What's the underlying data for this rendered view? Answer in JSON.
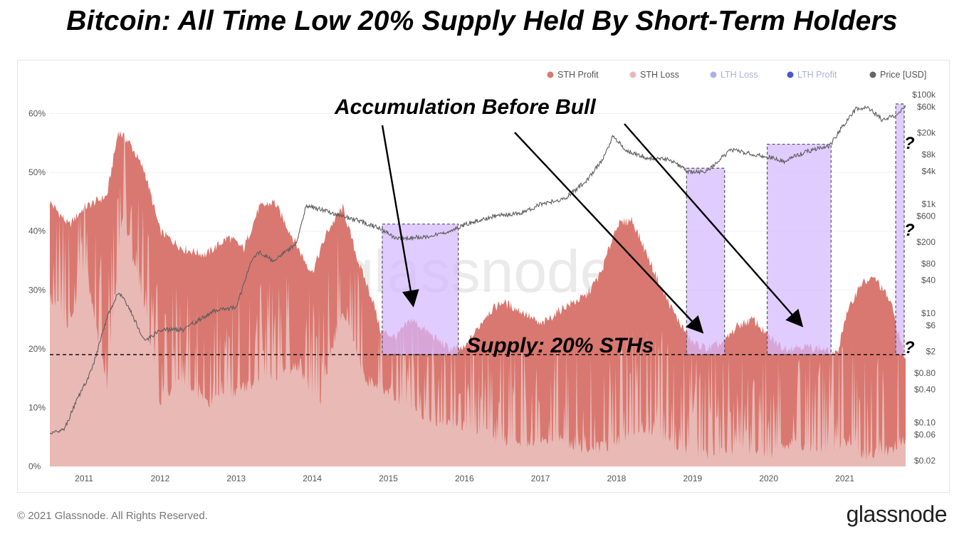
{
  "title": "Bitcoin: All Time Low 20% Supply Held By Short-Term Holders",
  "footer": {
    "copyright": "© 2021 Glassnode. All Rights Reserved.",
    "logo": "glassnode"
  },
  "watermark": "glassnode",
  "colors": {
    "sth_profit": "#d97870",
    "sth_loss": "#e9b9b5",
    "lth_loss": "#a9b2ea",
    "lth_profit": "#4b55d6",
    "price": "#5e5e5e",
    "highlight": "#d6b9ff"
  },
  "annotations": {
    "accumulation": "Accumulation Before Bull",
    "supply_line": "Supply: 20% STHs",
    "question": "?"
  },
  "chart_data": {
    "type": "area",
    "title": "Bitcoin: All Time Low 20% Supply Held By Short-Term Holders",
    "legend": [
      {
        "name": "STH Profit",
        "color": "#d97870",
        "faded": false
      },
      {
        "name": "STH Loss",
        "color": "#e9b9b5",
        "faded": false
      },
      {
        "name": "LTH Loss",
        "color": "#a9b2ea",
        "faded": true
      },
      {
        "name": "LTH Profit",
        "color": "#4b55d6",
        "faded": true
      },
      {
        "name": "Price [USD]",
        "color": "#666666",
        "faded": false
      }
    ],
    "legend_position": "top-right",
    "x_ticks": [
      "2011",
      "2012",
      "2013",
      "2014",
      "2015",
      "2016",
      "2017",
      "2018",
      "2019",
      "2020",
      "2021"
    ],
    "x_range": [
      2010.55,
      2021.8
    ],
    "y_left_ticks": [
      "0%",
      "10%",
      "20%",
      "30%",
      "40%",
      "50%",
      "60%"
    ],
    "y_left_range": [
      0,
      66
    ],
    "y_right_ticks": [
      "$0.02",
      "$0.06",
      "$0.10",
      "$0.40",
      "$0.80",
      "$2",
      "$6",
      "$10",
      "$40",
      "$80",
      "$200",
      "$600",
      "$1k",
      "$4k",
      "$8k",
      "$20k",
      "$60k",
      "$100k"
    ],
    "y_right_scale": "log",
    "y_right_range": [
      0.02,
      100000
    ],
    "reference_line": {
      "y": 19,
      "label": "Supply: 20% STHs",
      "style": "dashed"
    },
    "sth_supply_total": {
      "x": [
        2010.55,
        2010.8,
        2011.0,
        2011.3,
        2011.45,
        2011.6,
        2011.8,
        2012.0,
        2012.3,
        2012.6,
        2012.9,
        2013.1,
        2013.3,
        2013.5,
        2013.7,
        2013.9,
        2014.0,
        2014.2,
        2014.4,
        2014.6,
        2014.8,
        2014.9,
        2015.1,
        2015.3,
        2015.6,
        2015.8,
        2016.0,
        2016.3,
        2016.5,
        2016.8,
        2017.0,
        2017.3,
        2017.6,
        2017.8,
        2018.0,
        2018.2,
        2018.4,
        2018.6,
        2018.8,
        2019.0,
        2019.2,
        2019.4,
        2019.6,
        2019.8,
        2020.0,
        2020.2,
        2020.4,
        2020.7,
        2020.9,
        2021.0,
        2021.2,
        2021.4,
        2021.6,
        2021.8
      ],
      "y": [
        45,
        41,
        44,
        46,
        57,
        55,
        50,
        40,
        37,
        36,
        39,
        37,
        44,
        45,
        40,
        35,
        33,
        40,
        44,
        35,
        28,
        23,
        22,
        25,
        22,
        20,
        20,
        26,
        28,
        26,
        24,
        27,
        29,
        33,
        41,
        42,
        36,
        30,
        25,
        21,
        20,
        21,
        24,
        25,
        22,
        20,
        20.5,
        20,
        19,
        25,
        31,
        32,
        28,
        18
      ]
    },
    "sth_loss": {
      "x": [
        2010.55,
        2010.8,
        2011.0,
        2011.3,
        2011.5,
        2011.8,
        2012.0,
        2012.3,
        2012.6,
        2013.0,
        2013.4,
        2013.8,
        2014.1,
        2014.4,
        2014.7,
        2015.0,
        2015.3,
        2015.6,
        2016.0,
        2016.4,
        2016.8,
        2017.2,
        2017.6,
        2018.0,
        2018.3,
        2018.6,
        2018.9,
        2019.2,
        2019.6,
        2020.0,
        2020.3,
        2020.6,
        2021.0,
        2021.3,
        2021.6,
        2021.8
      ],
      "y": [
        30,
        24,
        36,
        15,
        44,
        28,
        12,
        16,
        12,
        14,
        16,
        18,
        12,
        28,
        16,
        14,
        11,
        9,
        8,
        6,
        5,
        6,
        4,
        5,
        8,
        6,
        4,
        3,
        4,
        3,
        5,
        4,
        5,
        3,
        4,
        6
      ]
    },
    "price_usd": {
      "x": [
        2010.55,
        2010.75,
        2010.9,
        2011.1,
        2011.3,
        2011.45,
        2011.6,
        2011.8,
        2012.0,
        2012.3,
        2012.7,
        2013.0,
        2013.2,
        2013.3,
        2013.5,
        2013.8,
        2013.92,
        2014.1,
        2014.4,
        2014.7,
        2014.9,
        2015.1,
        2015.5,
        2015.8,
        2016.0,
        2016.4,
        2016.8,
        2017.0,
        2017.3,
        2017.6,
        2017.8,
        2017.96,
        2018.1,
        2018.4,
        2018.7,
        2018.96,
        2019.2,
        2019.5,
        2019.8,
        2020.0,
        2020.2,
        2020.5,
        2020.8,
        2021.0,
        2021.15,
        2021.3,
        2021.5,
        2021.7,
        2021.8
      ],
      "x_note": "",
      "y": [
        0.06,
        0.08,
        0.25,
        0.9,
        8,
        25,
        12,
        3,
        5,
        5,
        11,
        13,
        90,
        130,
        90,
        200,
        950,
        800,
        600,
        450,
        350,
        230,
        250,
        300,
        420,
        600,
        700,
        1000,
        1200,
        2600,
        6000,
        18000,
        10000,
        7000,
        6500,
        3800,
        4000,
        10000,
        8000,
        7200,
        6000,
        9200,
        11500,
        30000,
        55000,
        60000,
        34000,
        45000,
        60000
      ]
    },
    "highlight_regions": [
      {
        "x0": 2014.92,
        "x1": 2015.92,
        "price_top": 380,
        "label": "Accumulation Before Bull"
      },
      {
        "x0": 2018.92,
        "x1": 2019.42,
        "price_top": 4000,
        "label": ""
      },
      {
        "x0": 2019.98,
        "x1": 2020.82,
        "price_top": 11000,
        "label": ""
      },
      {
        "x0": 2021.67,
        "x1": 2021.95,
        "price_top": 60000,
        "label": "?"
      }
    ]
  }
}
